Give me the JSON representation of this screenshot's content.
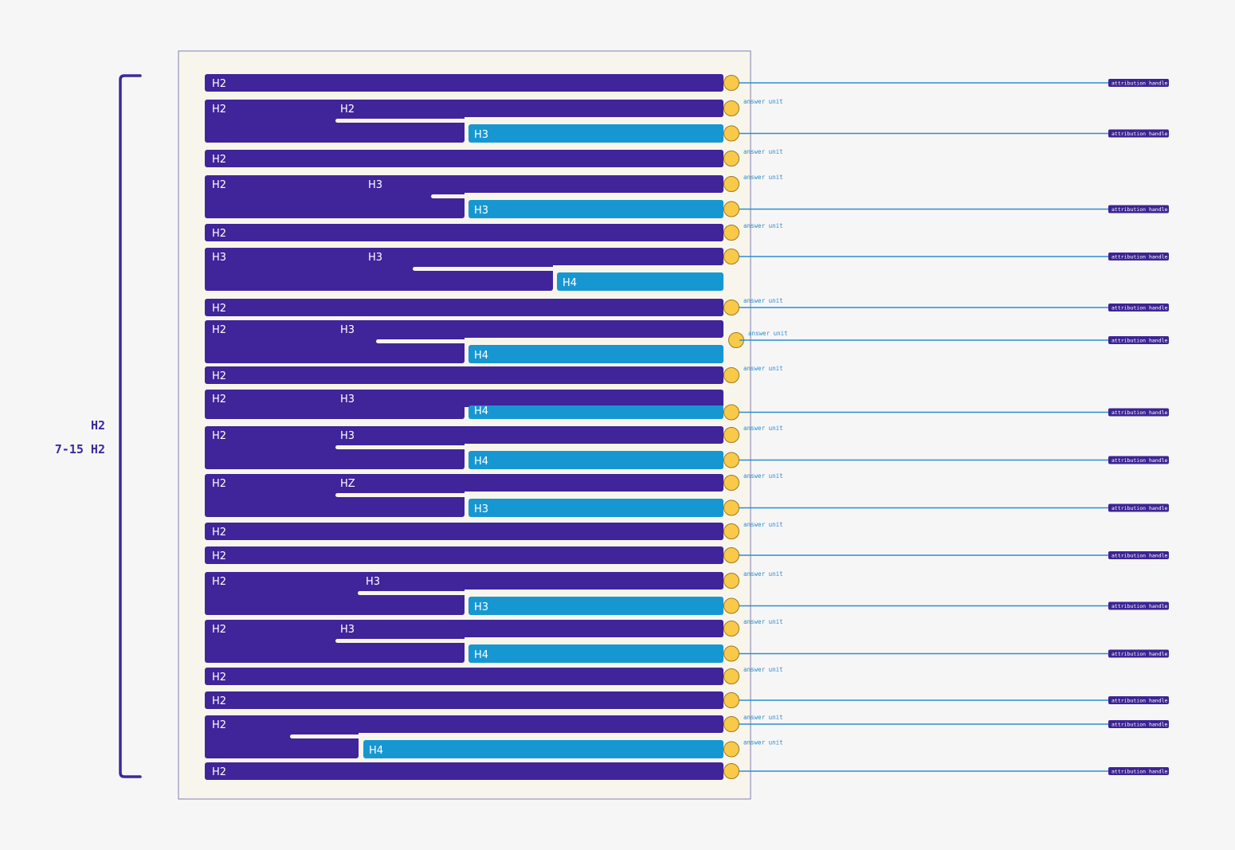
{
  "colors": {
    "background": "#f7f6f7",
    "panel": "#f8f6ec",
    "panel_border": "#7f7fb0",
    "h2_bar": "#40249a",
    "sub_bar": "#1797d2",
    "node": "#f9c94a",
    "node_stroke": "#a07a20",
    "connector": "#2a8fd0",
    "handle": "#3c2493",
    "bracket": "#3a2a9c"
  },
  "side": {
    "label_top": "H2",
    "label_bottom": "7-15 H2"
  },
  "labels": {
    "answer_unit": "answer unit",
    "attribution_handle": "attribution handle"
  },
  "sections": [
    {
      "type": "single",
      "label": "H2",
      "node": "handle"
    },
    {
      "type": "split",
      "label": "H2",
      "mid_label": "H2",
      "sub_label": "H3",
      "sub_color": "blue",
      "node_top": "answer",
      "node_bottom": "handle"
    },
    {
      "type": "single",
      "label": "H2",
      "node": "answer"
    },
    {
      "type": "split",
      "label": "H2",
      "mid_label": "H3",
      "sub_label": "H3",
      "sub_color": "blue",
      "node_top": "answer",
      "node_bottom": "handle"
    },
    {
      "type": "single",
      "label": "H2",
      "node": "answer"
    },
    {
      "type": "split",
      "label": "H3",
      "mid_label": "H3",
      "sub_label": "H4",
      "sub_color": "blue",
      "node_top": "handle",
      "node_bottom": "none"
    },
    {
      "type": "single",
      "label": "H2",
      "node": "both"
    },
    {
      "type": "split",
      "label": "H2",
      "mid_label": "H3",
      "sub_label": "H4",
      "sub_color": "blue",
      "node_top": "none",
      "node_bottom": "none",
      "node_mid": "both"
    },
    {
      "type": "single",
      "label": "H2",
      "node": "answer"
    },
    {
      "type": "split",
      "label": "H2",
      "mid_label": "H3",
      "sub_label": "H4",
      "sub_color": "blue",
      "node_top": "none",
      "node_bottom": "handle",
      "compact": true
    },
    {
      "type": "split",
      "label": "H2",
      "mid_label": "H3",
      "sub_label": "H4",
      "sub_color": "blue",
      "node_top": "answer",
      "node_bottom": "handle"
    },
    {
      "type": "split",
      "label": "H2",
      "mid_label": "HZ",
      "sub_label": "H3",
      "sub_color": "blue",
      "node_top": "answer",
      "node_bottom": "handle"
    },
    {
      "type": "single",
      "label": "H2",
      "node": "answer"
    },
    {
      "type": "single",
      "label": "H2",
      "node": "handle"
    },
    {
      "type": "split",
      "label": "H2",
      "mid_label": "H3",
      "sub_label": "H3",
      "sub_color": "blue",
      "node_top": "answer",
      "node_bottom": "handle"
    },
    {
      "type": "split",
      "label": "H2",
      "mid_label": "H3",
      "sub_label": "H4",
      "sub_color": "blue",
      "node_top": "answer",
      "node_bottom": "handle"
    },
    {
      "type": "single",
      "label": "H2",
      "node": "answer"
    },
    {
      "type": "single",
      "label": "H2",
      "node": "handle"
    },
    {
      "type": "split",
      "label": "H2",
      "mid_label": "",
      "sub_label": "H4",
      "sub_color": "blue",
      "node_top": "both",
      "node_bottom": "answer"
    },
    {
      "type": "single",
      "label": "H2",
      "node": "handle"
    }
  ]
}
